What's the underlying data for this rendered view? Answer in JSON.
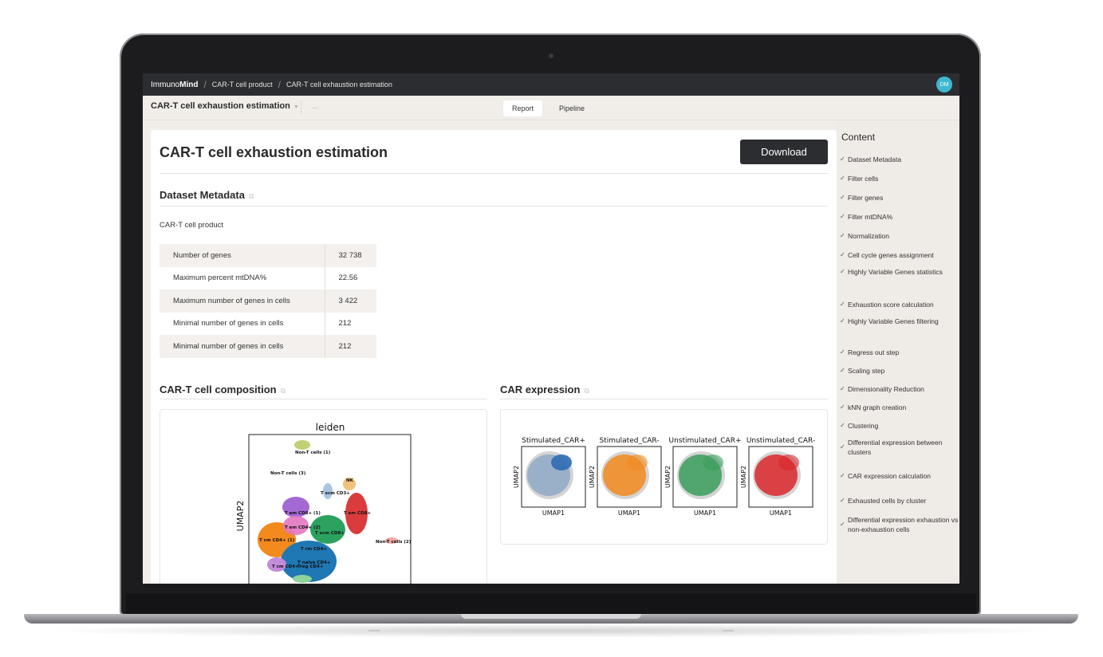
{
  "app": {
    "brand_prefix": "Immuno",
    "brand_bold": "Mind",
    "breadcrumb": [
      "CAR-T cell product",
      "CAR-T cell exhaustion estimation"
    ],
    "avatar_initials": "DM",
    "accent": "#3fb8cf"
  },
  "subbar": {
    "project_title": "CAR-T cell exhaustion estimation",
    "more": "...",
    "tabs": [
      {
        "label": "Report",
        "active": true
      },
      {
        "label": "Pipeline",
        "active": false
      }
    ]
  },
  "report": {
    "title": "CAR-T cell exhaustion estimation",
    "download_label": "Download",
    "metadata_heading": "Dataset Metadata",
    "dataset_name": "CAR-T cell product",
    "metadata_rows": [
      {
        "key": "Number of genes",
        "value": "32 738"
      },
      {
        "key": "Maximum percent mtDNA%",
        "value": "22.56"
      },
      {
        "key": "Maximum number of genes in cells",
        "value": "3 422"
      },
      {
        "key": "Minimal number of genes in cells",
        "value": "212"
      },
      {
        "key": "Minimal number of genes in cells",
        "value": "212"
      }
    ],
    "composition_heading": "CAR-T cell composition",
    "expression_heading": "CAR expression",
    "leiden_plot": {
      "title": "leiden",
      "ylabel": "UMAP2",
      "cluster_labels": [
        "Non-T cells (1)",
        "Non-T cells (3)",
        "NK",
        "T scm CD3+",
        "T em CD8+ (1)",
        "T em CD8+",
        "T em CD4+ (2)",
        "T scm CD8+",
        "T cm CD4+ (1)",
        "T rm CD4+",
        "T naive CD4+",
        "T cm CD4+",
        "Treg CD4+",
        "Non-T cells (2)"
      ]
    },
    "car_panels": [
      {
        "title": "Stimulated_CAR+",
        "xlabel": "UMAP1",
        "ylabel": "UMAP2",
        "color": "#2f6db3"
      },
      {
        "title": "Stimulated_CAR-",
        "xlabel": "UMAP1",
        "ylabel": "UMAP2",
        "color": "#f28a1e"
      },
      {
        "title": "Unstimulated_CAR+",
        "xlabel": "UMAP1",
        "ylabel": "UMAP2",
        "color": "#3a9e5c"
      },
      {
        "title": "Unstimulated_CAR-",
        "xlabel": "UMAP1",
        "ylabel": "UMAP2",
        "color": "#d9272c"
      }
    ]
  },
  "sidebar": {
    "title": "Content",
    "items": [
      {
        "label": "Dataset Metadata"
      },
      {
        "label": "Filter cells"
      },
      {
        "label": "Filter genes"
      },
      {
        "label": "Filter mtDNA%"
      },
      {
        "label": "Normalization"
      },
      {
        "label": "Cell cycle genes assignment"
      },
      {
        "label": "Highly Variable Genes statistics"
      },
      {
        "label": "Exhaustion score calculation"
      },
      {
        "label": "Highly Variable Genes filtering"
      },
      {
        "label": "Regress out step"
      },
      {
        "label": "Scaling step"
      },
      {
        "label": "Dimensionality Reduction"
      },
      {
        "label": "kNN graph creation"
      },
      {
        "label": "Clustering"
      },
      {
        "label": "Differential expression between clusters"
      },
      {
        "label": "CAR expression calculation"
      },
      {
        "label": "Exhausted cells by cluster"
      },
      {
        "label": "Differential expression exhaustion vs non-exhaustion cells"
      }
    ]
  }
}
